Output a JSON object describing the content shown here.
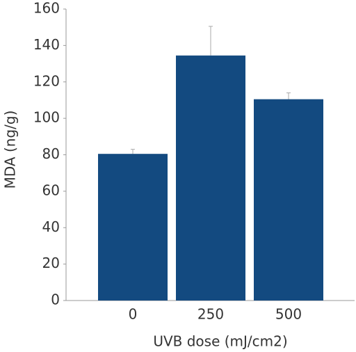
{
  "chart_data": {
    "type": "bar",
    "x_label": "UVB dose (mJ/cm2)",
    "y_label": "MDA (ng/g)",
    "categories": [
      "0",
      "250",
      "500"
    ],
    "values": [
      80.5,
      134.5,
      110.5
    ],
    "errors": [
      2.5,
      16,
      3.5
    ],
    "color": "#134a80",
    "ylim": [
      0,
      160
    ],
    "yticks": [
      0,
      20,
      40,
      60,
      80,
      100,
      120,
      140,
      160
    ]
  }
}
